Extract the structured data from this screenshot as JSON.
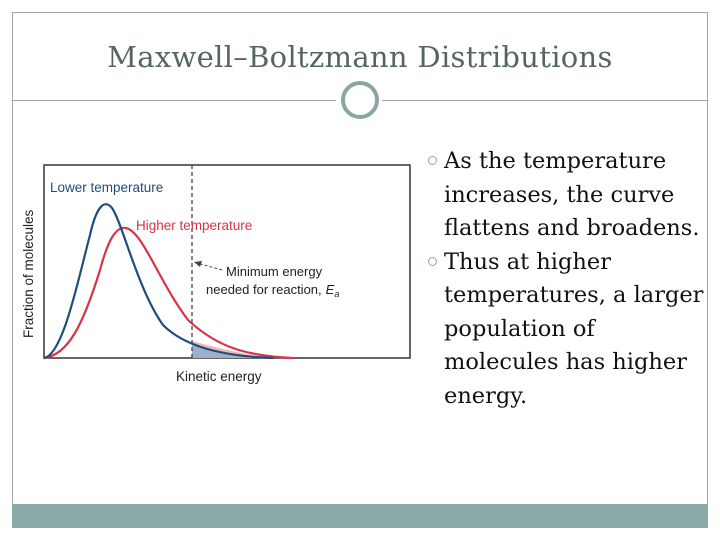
{
  "slide": {
    "title": "Maxwell–Boltzmann Distributions",
    "bullets": [
      "As the temperature increases, the curve flattens and broadens.",
      "Thus at higher temperatures, a larger population of molecules has higher energy."
    ]
  },
  "figure": {
    "y_axis_label": "Fraction of molecules",
    "x_axis_label": "Kinetic energy",
    "lower_temperature_label": "Lower temperature",
    "higher_temperature_label": "Higher temperature",
    "threshold_label_line1": "Minimum energy",
    "threshold_label_line2": "needed for reaction,",
    "threshold_symbol": "E",
    "threshold_subscript": "a",
    "colors": {
      "lower_temperature_curve": "#1f4e79",
      "higher_temperature_curve": "#d9334a",
      "lower_area_fill": "#9bb0cc",
      "higher_area_fill": "#f2b6b6",
      "axes": "#333333"
    }
  },
  "theme": {
    "frame_color": "#9aa8a8",
    "accent": "#8aaaaa",
    "title_color": "#556565"
  }
}
